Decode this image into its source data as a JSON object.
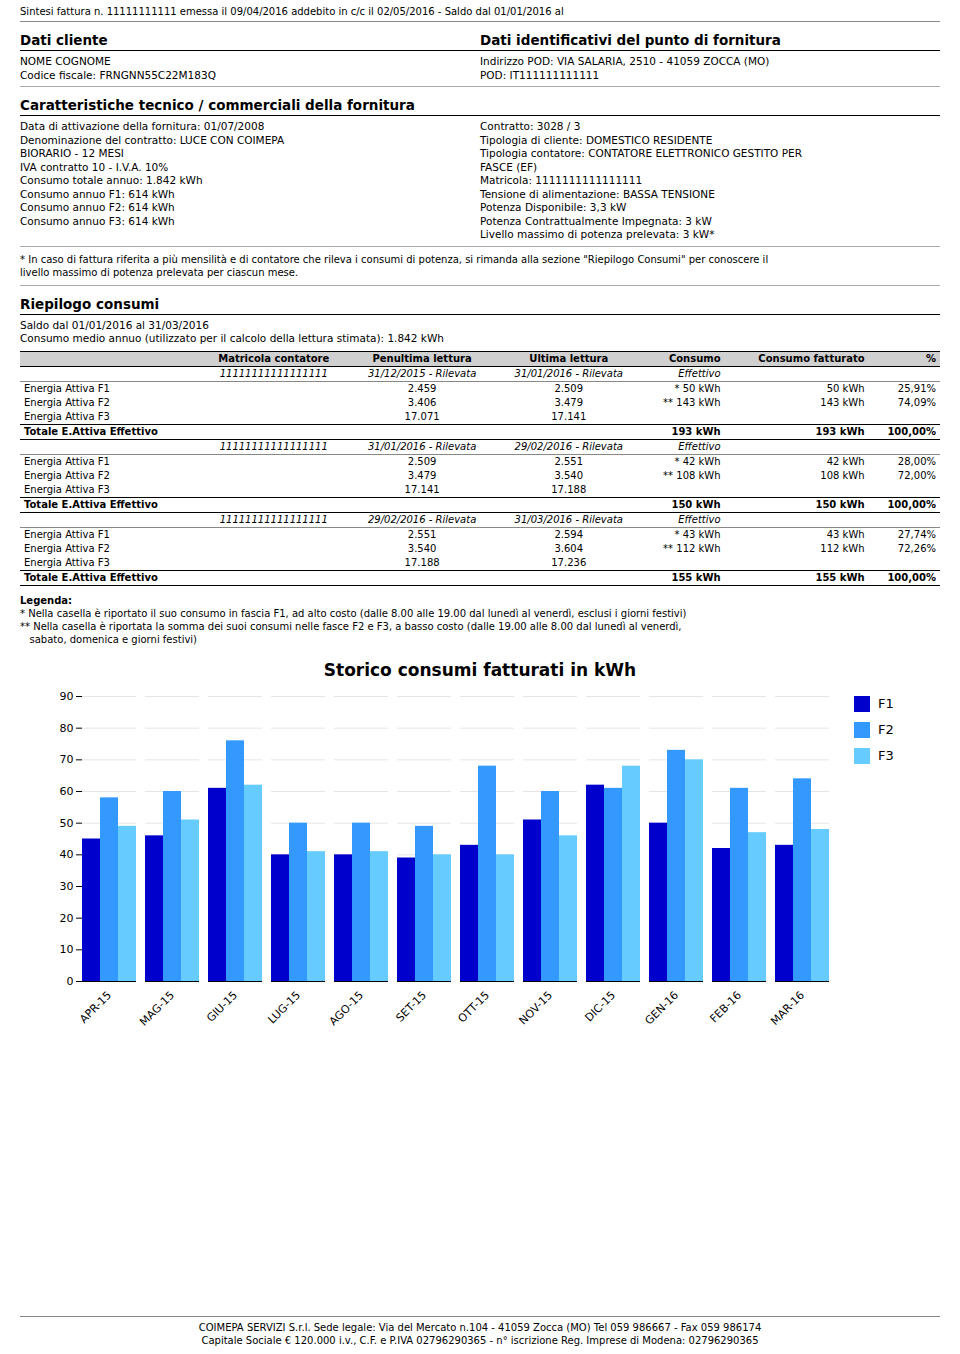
{
  "page": {
    "header": "Sintesi fattura n. 11111111111 emessa il 09/04/2016 addebito in c/c il 02/05/2016 - Saldo dal 01/01/2016 al",
    "client_title": "Dati cliente",
    "supply_title": "Dati identificativi del punto di fornitura",
    "client_lines": [
      "NOME COGNOME",
      "Codice fiscale: FRNGNN55C22M183Q"
    ],
    "supply_lines": [
      "Indirizzo POD: VIA SALARIA, 2510  - 41059 ZOCCA (MO)",
      "POD: IT111111111111"
    ],
    "features_title": "Caratteristiche tecnico / commerciali della fornitura",
    "features_left": [
      "Data di attivazione della fornitura: 01/07/2008",
      "Denominazione del contratto: LUCE CON COIMEPA",
      "BIORARIO - 12 MESI",
      "IVA contratto 10 - I.V.A. 10%",
      "Consumo totale annuo: 1.842 kWh",
      "Consumo annuo F1: 614 kWh",
      "Consumo annuo F2: 614 kWh",
      "Consumo annuo F3: 614 kWh"
    ],
    "features_right": [
      "Contratto: 3028 / 3",
      "Tipologia di cliente: DOMESTICO RESIDENTE",
      "Tipologia contatore: CONTATORE ELETTRONICO GESTITO PER",
      "FASCE (EF)",
      "Matricola: 1111111111111111",
      "Tensione di alimentazione: BASSA TENSIONE",
      "Potenza Disponibile: 3,3 kW",
      "Potenza Contrattualmente Impegnata: 3 kW",
      "Livello massimo di potenza prelevata: 3 kW*"
    ],
    "footnote": [
      "* In caso di fattura riferita a più mensilità e di contatore che rileva i consumi di potenza, si rimanda alla sezione \"Riepilogo Consumi\" per conoscere il",
      "livello massimo di potenza prelevata per ciascun mese."
    ],
    "summary_title": "Riepilogo consumi",
    "summary_lines": [
      "Saldo dal 01/01/2016 al 31/03/2016",
      "Consumo medio annuo (utilizzato per il calcolo della lettura stimata): 1.842 kWh"
    ],
    "table_headers": [
      "Matricola contatore",
      "Penultima lettura",
      "Ultima lettura",
      "Consumo",
      "Consumo fatturato",
      "%"
    ],
    "table_blocks": [
      {
        "subheader": [
          "11111111111111111",
          "31/12/2015 - Rilevata",
          "31/01/2016 - Rilevata",
          "Effettivo"
        ],
        "rows": [
          [
            "Energia Attiva F1",
            "2.459",
            "2.509",
            "* 50 kWh",
            "50 kWh",
            "25,91%"
          ],
          [
            "Energia Attiva F2",
            "3.406",
            "3.479",
            "** 143 kWh",
            "143 kWh",
            "74,09%"
          ],
          [
            "Energia Attiva F3",
            "17.071",
            "17.141",
            null,
            null,
            null
          ]
        ],
        "total": [
          "Totale E.Attiva Effettivo",
          "193 kWh",
          "193 kWh",
          "100,00%"
        ]
      },
      {
        "subheader": [
          "11111111111111111",
          "31/01/2016 - Rilevata",
          "29/02/2016 - Rilevata",
          "Effettivo"
        ],
        "rows": [
          [
            "Energia Attiva F1",
            "2.509",
            "2.551",
            "* 42 kWh",
            "42 kWh",
            "28,00%"
          ],
          [
            "Energia Attiva F2",
            "3.479",
            "3.540",
            "** 108 kWh",
            "108 kWh",
            "72,00%"
          ],
          [
            "Energia Attiva F3",
            "17.141",
            "17.188",
            null,
            null,
            null
          ]
        ],
        "total": [
          "Totale E.Attiva Effettivo",
          "150 kWh",
          "150 kWh",
          "100,00%"
        ]
      },
      {
        "subheader": [
          "11111111111111111",
          "29/02/2016 - Rilevata",
          "31/03/2016 - Rilevata",
          "Effettivo"
        ],
        "rows": [
          [
            "Energia Attiva F1",
            "2.551",
            "2.594",
            "* 43 kWh",
            "43 kWh",
            "27,74%"
          ],
          [
            "Energia Attiva F2",
            "3.540",
            "3.604",
            "** 112 kWh",
            "112 kWh",
            "72,26%"
          ],
          [
            "Energia Attiva F3",
            "17.188",
            "17.236",
            null,
            null,
            null
          ]
        ],
        "total": [
          "Totale E.Attiva Effettivo",
          "155 kWh",
          "155 kWh",
          "100,00%"
        ]
      }
    ],
    "legenda_lines": [
      "Legenda:",
      "* Nella casella è riportato il suo consumo in fascia F1, ad alto costo (dalle 8.00 alle 19.00 dal lunedì al venerdì, esclusi i giorni festivi)",
      "** Nella casella è riportata la somma dei suoi consumi nelle fasce F2 e F3, a basso costo (dalle 19.00 alle 8.00 dal lunedì al venerdì,",
      "   sabato, domenica e giorni festivi)"
    ],
    "footer_lines": [
      "COIMEPA SERVIZI S.r.l. Sede legale: Via del Mercato n.104 - 41059 Zocca (MO) Tel 059 986667 - Fax 059 986174",
      "Capitale Sociale € 120.000 i.v., C.F. e P.IVA 02796290365 - n° iscrizione Reg. Imprese di Modena: 02796290365"
    ]
  },
  "chart_data": {
    "type": "bar",
    "title": "Storico consumi fatturati in kWh",
    "categories": [
      "APR-15",
      "MAG-15",
      "GIU-15",
      "LUG-15",
      "AGO-15",
      "SET-15",
      "OTT-15",
      "NOV-15",
      "DIC-15",
      "GEN-16",
      "FEB-16",
      "MAR-16"
    ],
    "series": [
      {
        "name": "F1",
        "color": "#0000cc",
        "values": [
          45,
          46,
          61,
          40,
          40,
          39,
          43,
          51,
          62,
          50,
          42,
          43
        ]
      },
      {
        "name": "F2",
        "color": "#3399ff",
        "values": [
          58,
          60,
          76,
          50,
          50,
          49,
          68,
          60,
          61,
          73,
          61,
          64
        ]
      },
      {
        "name": "F3",
        "color": "#66ccff",
        "values": [
          49,
          51,
          62,
          41,
          41,
          40,
          40,
          46,
          68,
          70,
          47,
          48
        ]
      }
    ],
    "ylim": [
      0,
      90
    ],
    "yticks": [
      0,
      10,
      20,
      30,
      40,
      50,
      60,
      70,
      80,
      90
    ],
    "grid": true,
    "legend": "right"
  }
}
